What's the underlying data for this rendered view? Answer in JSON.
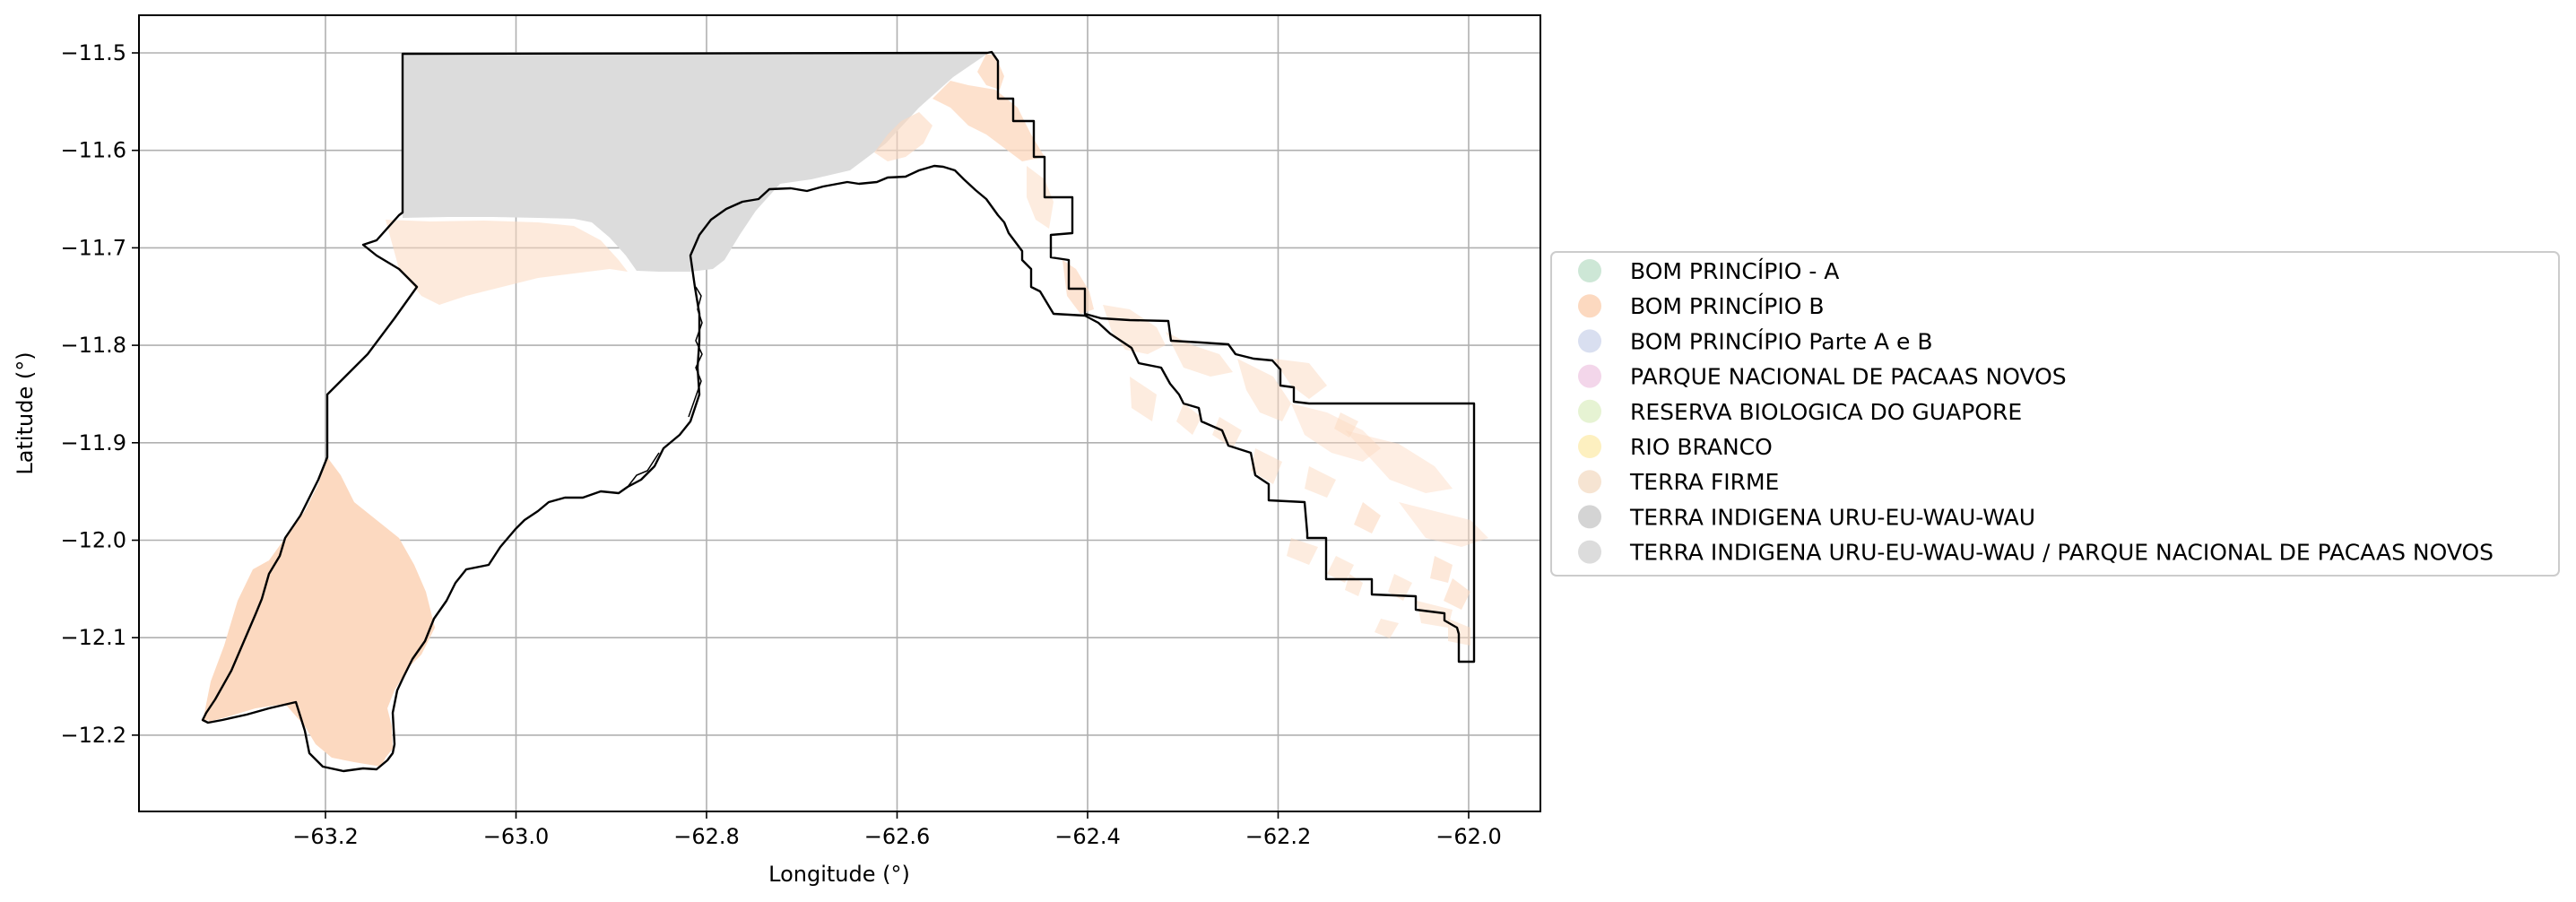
{
  "chart_data": {
    "type": "map",
    "xlabel": "Longitude (°)",
    "ylabel": "Latitude (°)",
    "xlim": [
      -63.395,
      -62.933
    ],
    "ylim": [
      -12.282,
      -11.461
    ],
    "x_ticks": [
      -63.2,
      -63.0,
      -62.8,
      -62.6,
      -62.4,
      -62.2,
      -62.0
    ],
    "x_tick_labels": [
      "−63.2",
      "−63.0",
      "−62.8",
      "−62.6",
      "−62.4",
      "−62.2",
      "−62.0"
    ],
    "y_ticks": [
      -11.5,
      -11.6,
      -11.7,
      -11.8,
      -11.9,
      -12.0,
      -12.1,
      -12.2
    ],
    "y_tick_labels": [
      "−11.5",
      "−11.6",
      "−11.7",
      "−11.8",
      "−11.9",
      "−12.0",
      "−12.1",
      "−12.2"
    ],
    "grid": true,
    "legend_position": "right-center",
    "legend": [
      {
        "label": "BOM PRINCÍPIO - A",
        "color": "#cde7d6"
      },
      {
        "label": "BOM PRINCÍPIO B",
        "color": "#fcd9c0"
      },
      {
        "label": "BOM PRINCÍPIO Parte A e B",
        "color": "#d9dff0"
      },
      {
        "label": "PARQUE NACIONAL DE PACAAS NOVOS",
        "color": "#f3d6ea"
      },
      {
        "label": "RESERVA BIOLOGICA DO GUAPORE",
        "color": "#e6f3d3"
      },
      {
        "label": "RIO BRANCO",
        "color": "#fdf0c0"
      },
      {
        "label": "TERRA FIRME",
        "color": "#f6e4d2"
      },
      {
        "label": "TERRA INDIGENA URU-EU-WAU-WAU",
        "color": "#d4d4d4"
      },
      {
        "label": "TERRA INDIGENA URU-EU-WAU-WAU / PARQUE NACIONAL DE PACAAS NOVOS",
        "color": "#dcdcdc"
      }
    ],
    "colors": {
      "outline": "#000000",
      "grid": "#b0b0b0",
      "bom_principio_b": "#fcd9c0",
      "indigenous_land": "#dcdcdc"
    }
  }
}
